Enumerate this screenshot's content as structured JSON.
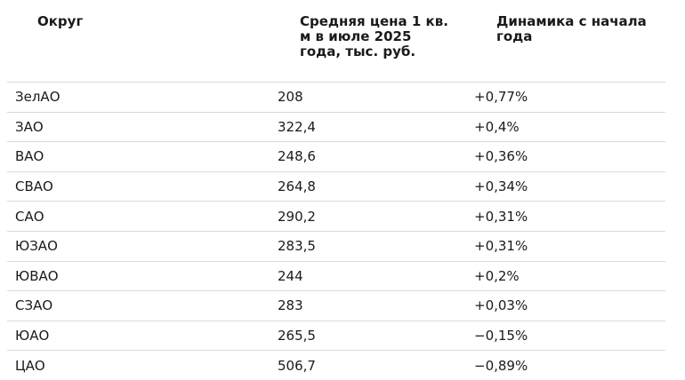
{
  "headers": {
    "okrug": "Округ",
    "price": "Средняя цена 1 кв. м в июле 2025 года, тыс. руб.",
    "dynamics": "Динамика с начала года"
  },
  "rows": [
    {
      "okrug": "ЗелАО",
      "price": "208",
      "dynamics": "+0,77%"
    },
    {
      "okrug": "ЗАО",
      "price": "322,4",
      "dynamics": "+0,4%"
    },
    {
      "okrug": "ВАО",
      "price": "248,6",
      "dynamics": "+0,36%"
    },
    {
      "okrug": "СВАО",
      "price": "264,8",
      "dynamics": "+0,34%"
    },
    {
      "okrug": "САО",
      "price": "290,2",
      "dynamics": "+0,31%"
    },
    {
      "okrug": "ЮЗАО",
      "price": "283,5",
      "dynamics": "+0,31%"
    },
    {
      "okrug": "ЮВАО",
      "price": "244",
      "dynamics": "+0,2%"
    },
    {
      "okrug": "СЗАО",
      "price": "283",
      "dynamics": "+0,03%"
    },
    {
      "okrug": "ЮАО",
      "price": "265,5",
      "dynamics": "−0,15%"
    },
    {
      "okrug": "ЦАО",
      "price": "506,7",
      "dynamics": "−0,89%"
    }
  ]
}
